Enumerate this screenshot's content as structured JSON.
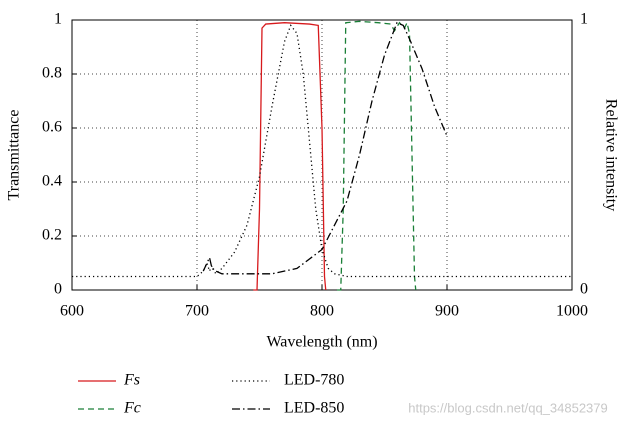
{
  "chart_data": {
    "type": "line",
    "xlabel": "Wavelength (nm)",
    "ylabel": "Transmittance",
    "y2label": "Relative intensity",
    "xlim": [
      600,
      1000
    ],
    "xticks": [
      600,
      700,
      800,
      900,
      1000
    ],
    "ylim": [
      0,
      1
    ],
    "yticks": [
      0,
      0.2,
      0.4,
      0.6,
      0.8,
      1
    ],
    "y2lim": [
      0,
      1
    ],
    "y2ticks": [
      0,
      1
    ],
    "grid": true,
    "legend": "bottom",
    "series": [
      {
        "name": "Fs",
        "color": "#d7191c",
        "style": "solid",
        "x": [
          745,
          748,
          750,
          752,
          755,
          770,
          790,
          797,
          800,
          802,
          803
        ],
        "values": [
          0,
          0,
          0.3,
          0.97,
          0.985,
          0.99,
          0.985,
          0.98,
          0.6,
          0.05,
          0
        ]
      },
      {
        "name": "Fc",
        "color": "#1a7f37",
        "style": "dashed",
        "x": [
          812,
          815,
          817,
          819,
          830,
          845,
          855,
          858,
          862,
          866,
          868,
          870,
          872,
          874,
          875
        ],
        "values": [
          0,
          0,
          0.3,
          0.99,
          0.995,
          0.99,
          0.985,
          0.96,
          0.99,
          0.97,
          0.99,
          0.95,
          0.5,
          0.05,
          0
        ]
      },
      {
        "name": "LED-780",
        "color": "#000000",
        "style": "dotted",
        "axis": "y2",
        "x": [
          600,
          700,
          705,
          708,
          710,
          712,
          715,
          720,
          730,
          740,
          750,
          760,
          770,
          775,
          780,
          785,
          790,
          795,
          800,
          805,
          810,
          820,
          1000
        ],
        "values": [
          0.05,
          0.05,
          0.07,
          0.1,
          0.07,
          0.09,
          0.06,
          0.08,
          0.14,
          0.24,
          0.42,
          0.68,
          0.92,
          0.98,
          0.95,
          0.8,
          0.55,
          0.3,
          0.15,
          0.08,
          0.06,
          0.05,
          0.05
        ]
      },
      {
        "name": "LED-850",
        "color": "#000000",
        "style": "dashdot",
        "axis": "y2",
        "x": [
          705,
          708,
          710,
          712,
          715,
          720,
          760,
          780,
          800,
          810,
          820,
          830,
          840,
          850,
          860,
          865,
          870,
          880,
          890,
          900
        ],
        "values": [
          0.07,
          0.1,
          0.12,
          0.08,
          0.07,
          0.06,
          0.06,
          0.08,
          0.15,
          0.24,
          0.33,
          0.5,
          0.7,
          0.87,
          0.99,
          0.98,
          0.93,
          0.82,
          0.68,
          0.57
        ]
      }
    ],
    "watermark": "https://blog.csdn.net/qq_34852379"
  }
}
